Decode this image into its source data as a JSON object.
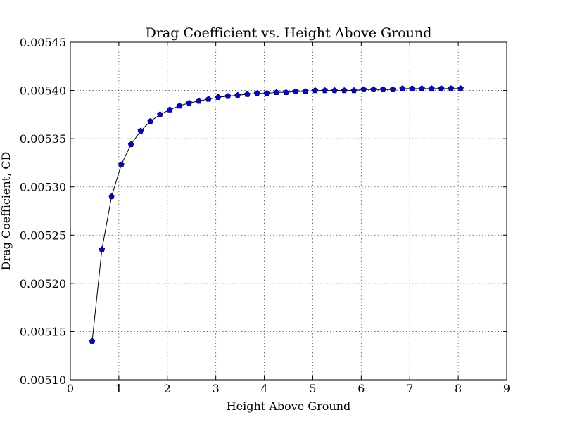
{
  "chart_data": {
    "type": "line",
    "title": "Drag Coefficient vs. Height Above Ground",
    "xlabel": "Height Above Ground",
    "ylabel": "Drag Coefficient, CD",
    "xlim": [
      0,
      9
    ],
    "ylim": [
      0.0051,
      0.00545
    ],
    "xticks": [
      "0",
      "1",
      "2",
      "3",
      "4",
      "5",
      "6",
      "7",
      "8",
      "9"
    ],
    "yticks": [
      "0.00510",
      "0.00515",
      "0.00520",
      "0.00525",
      "0.00530",
      "0.00535",
      "0.00540",
      "0.00545"
    ],
    "grid": true,
    "series": [
      {
        "line_color": "#000000",
        "marker": "pentagon",
        "marker_color": "#0000ff",
        "x": [
          0.45,
          0.65,
          0.85,
          1.05,
          1.25,
          1.45,
          1.65,
          1.85,
          2.05,
          2.25,
          2.45,
          2.65,
          2.85,
          3.05,
          3.25,
          3.45,
          3.65,
          3.85,
          4.05,
          4.25,
          4.45,
          4.65,
          4.85,
          5.05,
          5.25,
          5.45,
          5.65,
          5.85,
          6.05,
          6.25,
          6.45,
          6.65,
          6.85,
          7.05,
          7.25,
          7.45,
          7.65,
          7.85,
          8.05
        ],
        "y": [
          0.00514,
          0.005235,
          0.00529,
          0.005323,
          0.005344,
          0.005358,
          0.005368,
          0.005375,
          0.00538,
          0.005384,
          0.005387,
          0.005389,
          0.005391,
          0.005393,
          0.005394,
          0.005395,
          0.005396,
          0.005397,
          0.005397,
          0.005398,
          0.005398,
          0.005399,
          0.005399,
          0.0054,
          0.0054,
          0.0054,
          0.0054,
          0.0054,
          0.005401,
          0.005401,
          0.005401,
          0.005401,
          0.005402,
          0.005402,
          0.005402,
          0.005402,
          0.005402,
          0.005402,
          0.005402
        ]
      }
    ]
  }
}
